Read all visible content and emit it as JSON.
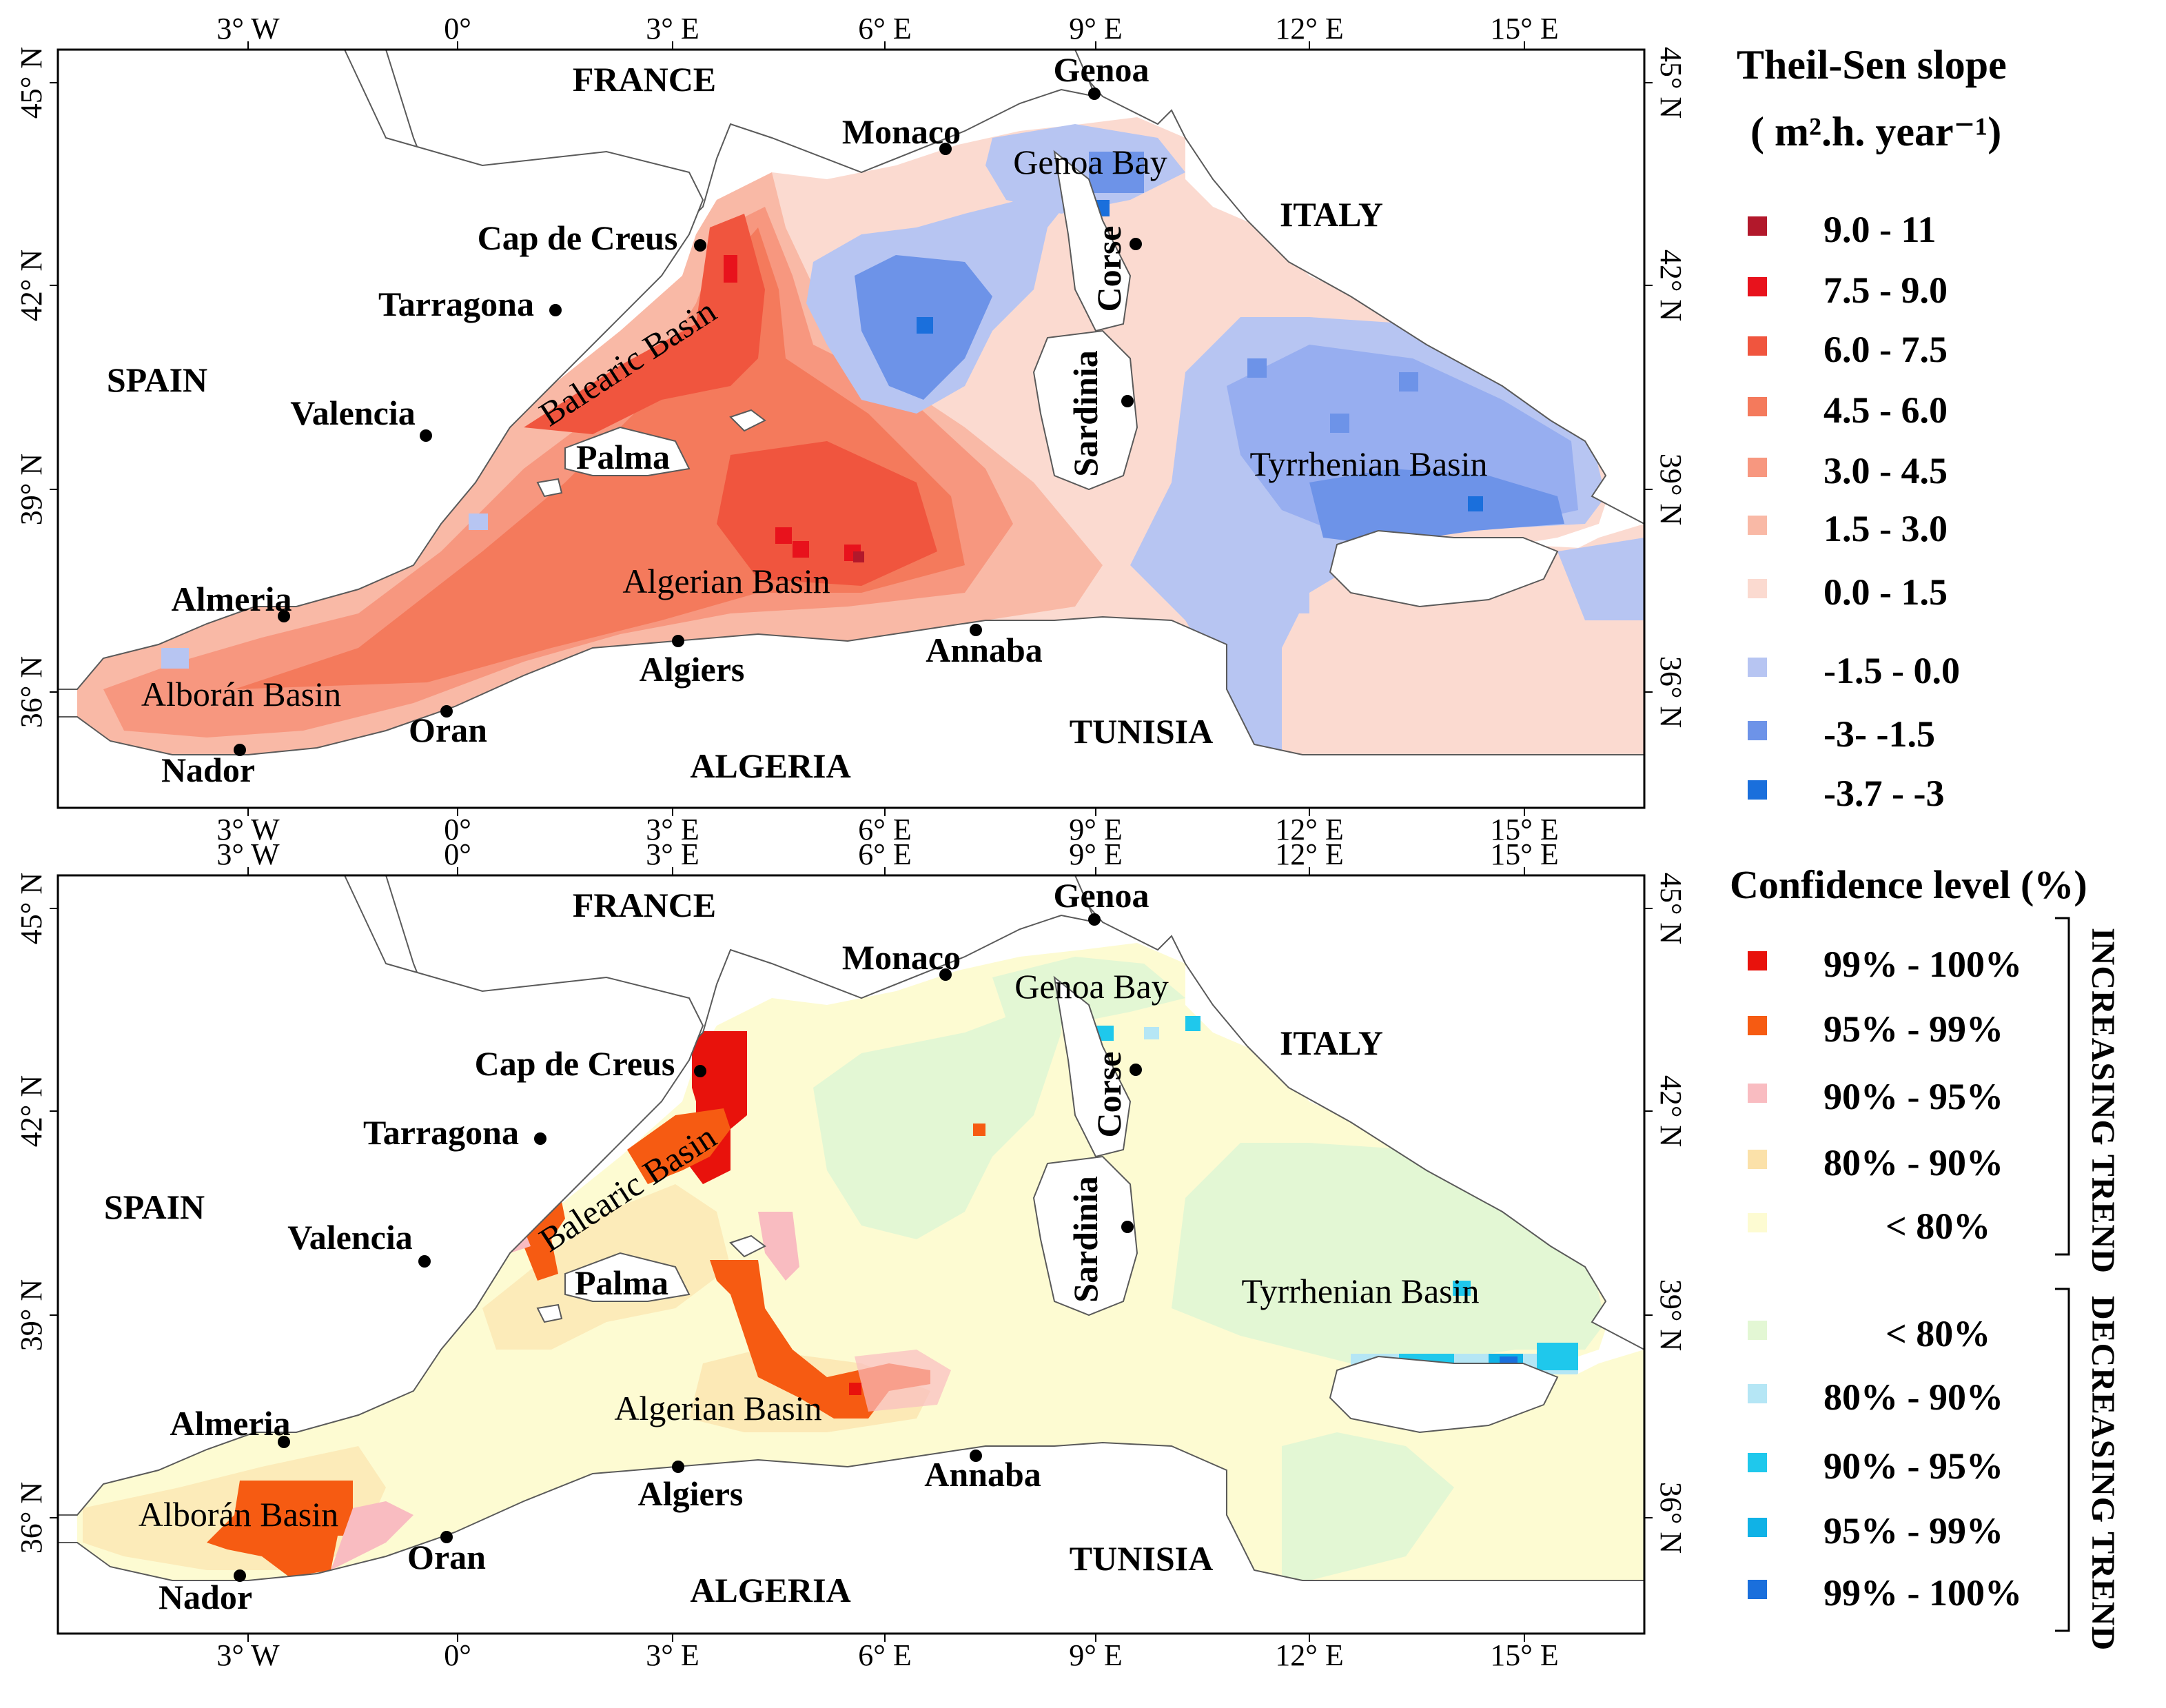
{
  "maps": [
    {
      "id": "slope",
      "x_ticks": [
        "3° W",
        "0°",
        "3° E",
        "6° E",
        "9° E",
        "12° E",
        "15° E"
      ],
      "y_ticks": [
        "45° N",
        "42° N",
        "39° N",
        "36° N"
      ],
      "places": {
        "france": "FRANCE",
        "genoa": "Genoa",
        "monaco": "Monaco",
        "genoa_bay": "Genoa Bay",
        "italy": "ITALY",
        "cap_de_creus": "Cap de Creus",
        "corse": "Corse",
        "tarragona": "Tarragona",
        "spain": "SPAIN",
        "valencia": "Valencia",
        "balearic_basin": "Balearic Basin",
        "sardinia": "Sardinia",
        "palma": "Palma",
        "tyrrhenian_basin": "Tyrrhenian Basin",
        "almeria": "Almeria",
        "algerian_basin": "Algerian Basin",
        "annaba": "Annaba",
        "algiers": "Algiers",
        "alboran_basin": "Alborán Basin",
        "oran": "Oran",
        "nador": "Nador",
        "tunisia": "TUNISIA",
        "algeria": "ALGERIA"
      }
    },
    {
      "id": "confidence",
      "x_ticks": [
        "3° W",
        "0°",
        "3° E",
        "6° E",
        "9° E",
        "12° E",
        "15° E"
      ],
      "y_ticks": [
        "45° N",
        "42° N",
        "39° N",
        "36° N"
      ],
      "places": {
        "france": "FRANCE",
        "genoa": "Genoa",
        "monaco": "Monaco",
        "genoa_bay": "Genoa Bay",
        "italy": "ITALY",
        "cap_de_creus": "Cap de Creus",
        "corse": "Corse",
        "tarragona": "Tarragona",
        "spain": "SPAIN",
        "valencia": "Valencia",
        "balearic_basin": "Balearic Basin",
        "sardinia": "Sardinia",
        "palma": "Palma",
        "tyrrhenian_basin": "Tyrrhenian Basin",
        "almeria": "Almeria",
        "algerian_basin": "Algerian Basin",
        "annaba": "Annaba",
        "algiers": "Algiers",
        "alboran_basin": "Alborán Basin",
        "oran": "Oran",
        "nador": "Nador",
        "tunisia": "TUNISIA",
        "algeria": "ALGERIA"
      }
    }
  ],
  "legend_slope": {
    "title_line1": "Theil-Sen slope",
    "title_line2": "( m².h. year⁻¹)",
    "classes": [
      {
        "label": "9.0 - 11",
        "color": "#b2182b"
      },
      {
        "label": "7.5 - 9.0",
        "color": "#e8121c"
      },
      {
        "label": "6.0 - 7.5",
        "color": "#f0553e"
      },
      {
        "label": "4.5 - 6.0",
        "color": "#f47a5c"
      },
      {
        "label": "3.0 - 4.5",
        "color": "#f7977f"
      },
      {
        "label": "1.5 - 3.0",
        "color": "#f9b9a6"
      },
      {
        "label": "0.0 - 1.5",
        "color": "#fbdad0"
      },
      {
        "label": "-1.5 - 0.0",
        "color": "#b7c5f2"
      },
      {
        "label": "-3- -1.5",
        "color": "#6d93e8"
      },
      {
        "label": "-3.7 - -3",
        "color": "#1a6fdc"
      }
    ]
  },
  "legend_confidence": {
    "title": "Confidence level (%)",
    "increasing_label": "INCREASING TREND",
    "decreasing_label": "DECREASING TREND",
    "increasing": [
      {
        "label": "99% - 100%",
        "color": "#e8120c"
      },
      {
        "label": "95% - 99%",
        "color": "#f65b12"
      },
      {
        "label": "90% - 95%",
        "color": "#f9bcc1"
      },
      {
        "label": "80% - 90%",
        "color": "#fbe1a9"
      },
      {
        "label": "< 80%",
        "color": "#fdfbd2"
      }
    ],
    "decreasing": [
      {
        "label": "< 80%",
        "color": "#e3f7d4"
      },
      {
        "label": "80% - 90%",
        "color": "#b5e6f5"
      },
      {
        "label": "90% - 95%",
        "color": "#1fc8ec"
      },
      {
        "label": "95% - 99%",
        "color": "#10b2e6"
      },
      {
        "label": "99% - 100%",
        "color": "#1a6fdc"
      }
    ]
  }
}
